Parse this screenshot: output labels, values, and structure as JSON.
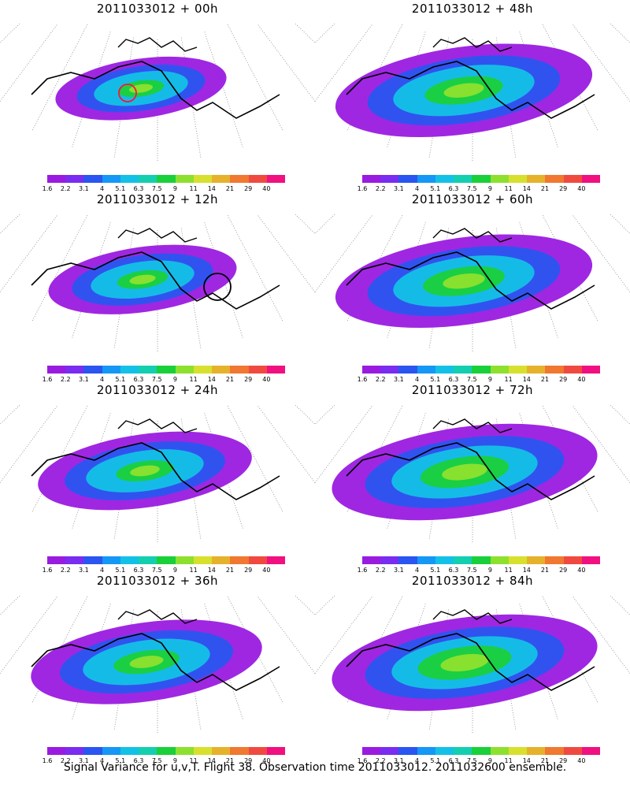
{
  "panels": [
    {
      "title": "2011033012 + 00h",
      "spread": 0.45,
      "intensity": 0.55,
      "circle": "red"
    },
    {
      "title": "2011033012 + 48h",
      "spread": 0.95,
      "intensity": 0.62,
      "circle": null
    },
    {
      "title": "2011033012 + 12h",
      "spread": 0.55,
      "intensity": 0.55,
      "circle": "black"
    },
    {
      "title": "2011033012 + 60h",
      "spread": 0.95,
      "intensity": 0.65,
      "circle": null
    },
    {
      "title": "2011033012 + 24h",
      "spread": 0.7,
      "intensity": 0.55,
      "circle": null
    },
    {
      "title": "2011033012 + 72h",
      "spread": 1.0,
      "intensity": 0.68,
      "circle": null
    },
    {
      "title": "2011033012 + 36h",
      "spread": 0.8,
      "intensity": 0.58,
      "circle": null
    },
    {
      "title": "2011033012 + 84h",
      "spread": 1.0,
      "intensity": 0.72,
      "circle": null
    }
  ],
  "colorbar": {
    "labels": [
      "1.6",
      "2.2",
      "3.1",
      "4",
      "5.1",
      "6.3",
      "7.5",
      "9",
      "11",
      "14",
      "21",
      "29",
      "40"
    ],
    "colors": [
      "#9a1be0",
      "#7a2cf0",
      "#2a55f0",
      "#1597f5",
      "#14c1e6",
      "#13cfb0",
      "#1ad03a",
      "#8ee02e",
      "#d8e02e",
      "#e6b22c",
      "#f07830",
      "#f04a40",
      "#f01080"
    ]
  },
  "caption": "Signal Variance for u,v,T. Flight 38. Observation time 2011033012. 2011032600 ensemble."
}
